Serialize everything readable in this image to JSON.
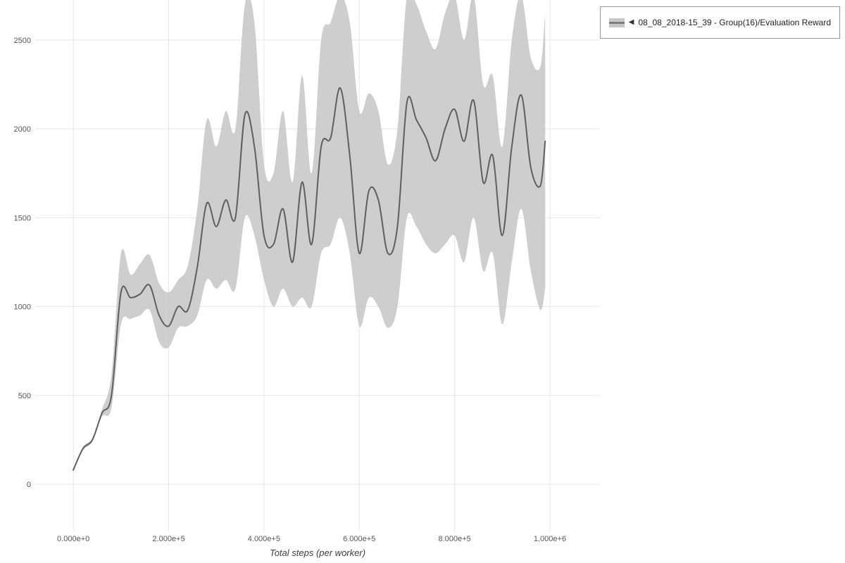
{
  "legend": {
    "toggle_icon": "◀",
    "label": "08_08_2018-15_39 - Group(16)/Evaluation Reward"
  },
  "chart_data": {
    "type": "line",
    "title": "",
    "xlabel": "Total steps (per worker)",
    "ylabel": "",
    "xlim": [
      -80000,
      1105000
    ],
    "ylim": [
      -265,
      2725
    ],
    "grid": true,
    "legend_position": "top-right",
    "x_ticks": [
      {
        "label": "0.000e+0",
        "value": 0
      },
      {
        "label": "2.000e+5",
        "value": 200000
      },
      {
        "label": "4.000e+5",
        "value": 400000
      },
      {
        "label": "6.000e+5",
        "value": 600000
      },
      {
        "label": "8.000e+5",
        "value": 800000
      },
      {
        "label": "1.000e+6",
        "value": 1000000
      }
    ],
    "y_ticks": [
      {
        "label": "0",
        "value": 0
      },
      {
        "label": "500",
        "value": 500
      },
      {
        "label": "1000",
        "value": 1000
      },
      {
        "label": "1500",
        "value": 1500
      },
      {
        "label": "2000",
        "value": 2000
      },
      {
        "label": "2500",
        "value": 2500
      }
    ],
    "series": [
      {
        "name": "08_08_2018-15_39 - Group(16)/Evaluation Reward",
        "x": [
          0,
          20000,
          40000,
          60000,
          80000,
          100000,
          120000,
          140000,
          160000,
          180000,
          200000,
          220000,
          240000,
          260000,
          280000,
          300000,
          320000,
          340000,
          360000,
          380000,
          400000,
          420000,
          440000,
          460000,
          480000,
          500000,
          520000,
          540000,
          560000,
          580000,
          600000,
          620000,
          640000,
          660000,
          680000,
          700000,
          720000,
          740000,
          760000,
          780000,
          800000,
          820000,
          840000,
          860000,
          880000,
          900000,
          920000,
          940000,
          960000,
          980000,
          990000
        ],
        "mean": [
          80,
          200,
          250,
          400,
          500,
          1080,
          1050,
          1070,
          1120,
          950,
          890,
          1000,
          980,
          1220,
          1580,
          1450,
          1600,
          1500,
          2080,
          1900,
          1400,
          1350,
          1550,
          1250,
          1700,
          1350,
          1900,
          1950,
          2230,
          1850,
          1300,
          1650,
          1600,
          1300,
          1450,
          2150,
          2050,
          1950,
          1820,
          2000,
          2110,
          1930,
          2160,
          1700,
          1850,
          1400,
          1900,
          2190,
          1780,
          1680,
          1930
        ],
        "band_lower": [
          78,
          190,
          240,
          380,
          430,
          900,
          930,
          950,
          980,
          800,
          770,
          880,
          890,
          950,
          1150,
          1100,
          1150,
          1100,
          1500,
          1400,
          1150,
          1000,
          1100,
          1000,
          1050,
          1000,
          1300,
          1350,
          1500,
          1300,
          890,
          1050,
          1000,
          880,
          1000,
          1500,
          1450,
          1350,
          1300,
          1350,
          1400,
          1250,
          1500,
          1200,
          1300,
          900,
          1250,
          1550,
          1200,
          980,
          1100
        ],
        "band_upper": [
          85,
          210,
          260,
          420,
          620,
          1300,
          1180,
          1240,
          1290,
          1130,
          1080,
          1150,
          1230,
          1550,
          2050,
          1900,
          2100,
          2000,
          2700,
          2600,
          1800,
          1750,
          2100,
          1700,
          2300,
          1750,
          2500,
          2600,
          2750,
          2600,
          2100,
          2200,
          2100,
          1800,
          2000,
          2750,
          2700,
          2550,
          2450,
          2650,
          2750,
          2500,
          2750,
          2250,
          2300,
          1900,
          2500,
          2750,
          2400,
          2350,
          2650
        ]
      }
    ],
    "colors": {
      "band": "#c6c6c6",
      "line": "#5f5f5f",
      "grid": "#e6e6e6",
      "tick": "#555555",
      "label": "#3c3c3c"
    }
  }
}
